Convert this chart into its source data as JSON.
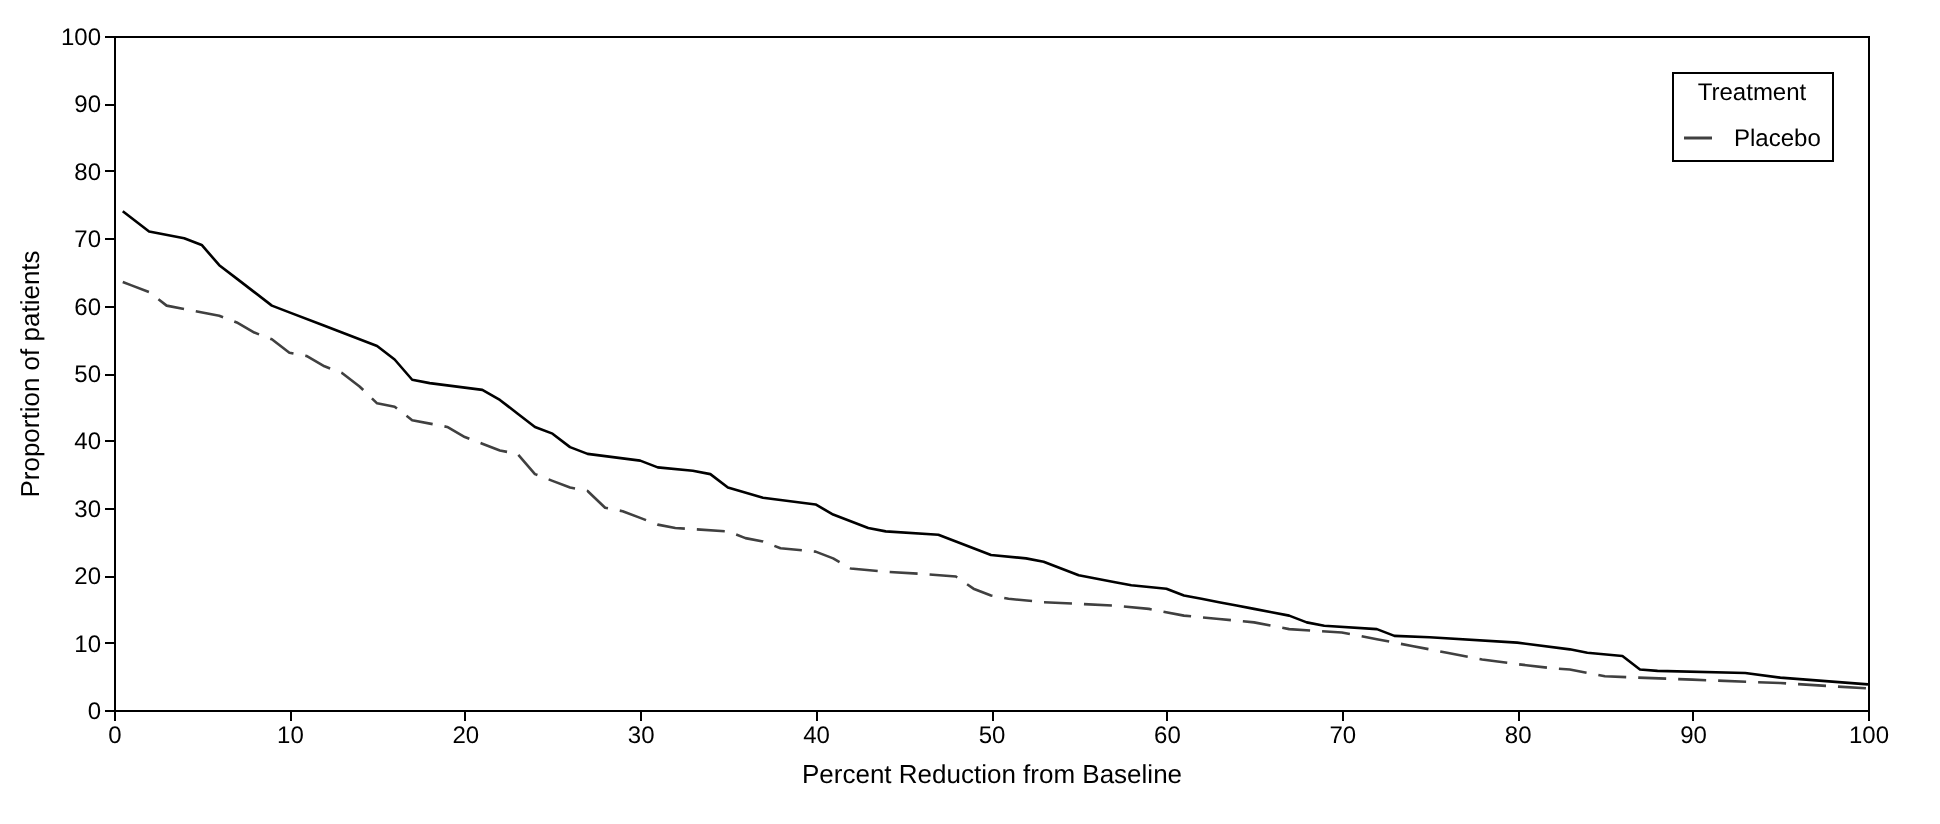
{
  "chart_data": {
    "type": "line",
    "xlabel": "Percent Reduction from Baseline",
    "ylabel": "Proportion of patients",
    "legend_title": "Treatment",
    "legend": "top right",
    "grid": false,
    "marker": "none",
    "xlim": [
      0,
      100
    ],
    "xticks": [
      0,
      10,
      20,
      30,
      40,
      50,
      60,
      70,
      80,
      90,
      100
    ],
    "ylim": [
      0,
      100
    ],
    "yticks": [
      0,
      10,
      20,
      30,
      40,
      50,
      60,
      70,
      80,
      90,
      100
    ],
    "series": [
      {
        "color": "#000000",
        "line_style": "solid",
        "x": [
          0.5,
          1,
          2,
          4,
          5,
          6,
          7,
          8,
          9,
          10,
          12,
          13,
          15,
          16,
          17,
          18,
          21,
          22,
          23,
          24,
          25,
          26,
          27,
          30,
          31,
          33,
          34,
          35,
          37,
          40,
          41,
          42,
          43,
          44,
          47,
          48,
          49,
          50,
          52,
          53,
          54,
          55,
          57,
          58,
          60,
          61,
          62,
          63,
          64,
          65,
          66,
          67,
          68,
          69,
          72,
          73,
          75,
          80,
          83,
          84,
          86,
          87,
          88,
          93,
          95,
          100
        ],
        "values": [
          74,
          73,
          71,
          70,
          69,
          66,
          64,
          62,
          60,
          59,
          57,
          56,
          54,
          52,
          49,
          48.5,
          47.5,
          46,
          44,
          42,
          41,
          39,
          38,
          37,
          36,
          35.5,
          35,
          33,
          31.5,
          30.5,
          29,
          28,
          27,
          26.5,
          26,
          25,
          24,
          23,
          22.5,
          22,
          21,
          20,
          19,
          18.5,
          18,
          17,
          16.5,
          16,
          15.5,
          15,
          14.5,
          14,
          13,
          12.5,
          12,
          11,
          10.8,
          10,
          9,
          8.5,
          8,
          6,
          5.8,
          5.5,
          4.8,
          3.8
        ]
      },
      {
        "name": "Placebo",
        "color": "#404040",
        "line_style": "dashed",
        "x": [
          0.5,
          1,
          2,
          3,
          4,
          6,
          7,
          8,
          9,
          10,
          11,
          12,
          13,
          14,
          15,
          16,
          17,
          19,
          20,
          21,
          22,
          23,
          24,
          25,
          26,
          27,
          28,
          29,
          30,
          31,
          32,
          35,
          36,
          37,
          38,
          40,
          41,
          42,
          44,
          46,
          48,
          49,
          50,
          51,
          53,
          57,
          59,
          61,
          63,
          65,
          67,
          70,
          72,
          74,
          76,
          78,
          80,
          82,
          83,
          84,
          85,
          90,
          95,
          100
        ],
        "values": [
          63.5,
          63,
          62,
          60,
          59.5,
          58.5,
          57.5,
          56,
          55,
          53,
          52.5,
          51,
          50,
          48,
          45.5,
          45,
          43,
          42,
          40.5,
          39.5,
          38.5,
          38,
          35,
          34,
          33,
          32.5,
          30,
          29.5,
          28.5,
          27.5,
          27,
          26.5,
          25.5,
          25,
          24,
          23.5,
          22.5,
          21,
          20.5,
          20.2,
          19.8,
          18,
          17,
          16.5,
          16,
          15.5,
          15,
          14,
          13.5,
          13,
          12,
          11.5,
          10.5,
          9.5,
          8.5,
          7.5,
          6.8,
          6.2,
          6,
          5.5,
          5,
          4.5,
          4,
          3.2
        ]
      }
    ]
  }
}
